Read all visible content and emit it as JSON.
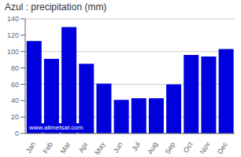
{
  "chart_data": {
    "type": "bar",
    "title": "Azul : precipitation (mm)",
    "categories": [
      "Jan",
      "Feb",
      "Mar",
      "Apr",
      "May",
      "Jun",
      "Jul",
      "Aug",
      "Sep",
      "Oct",
      "Nov",
      "Dec"
    ],
    "values": [
      113,
      91,
      130,
      85,
      61,
      41,
      43,
      43,
      60,
      96,
      94,
      103
    ],
    "color": "#0000dd",
    "ylim": [
      0,
      140
    ],
    "yticks": [
      0,
      20,
      40,
      60,
      80,
      100,
      120,
      140
    ],
    "grid": true,
    "annotations": [
      "www.allmetsat.com"
    ]
  }
}
